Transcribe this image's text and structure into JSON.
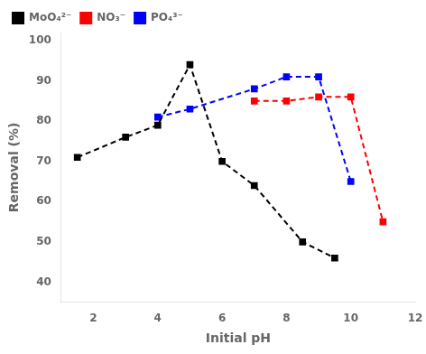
{
  "chart_data": {
    "type": "line",
    "xlabel": "Initial pH",
    "ylabel": "Removal (%)",
    "xlim": [
      1,
      12
    ],
    "ylim": [
      35,
      102
    ],
    "xticks": [
      2,
      4,
      6,
      8,
      10,
      12
    ],
    "yticks": [
      40,
      50,
      60,
      70,
      80,
      90,
      100
    ],
    "grid": false,
    "legend": "upper left",
    "series": [
      {
        "name": "MoO₄²⁻",
        "color": "black",
        "marker": "square",
        "line_style": "dashed",
        "x": [
          1.5,
          3,
          4,
          5,
          6,
          7,
          8.5,
          9.5
        ],
        "values": [
          71,
          76,
          79,
          94,
          70,
          64,
          50,
          46
        ]
      },
      {
        "name": "NO₃⁻",
        "color": "red",
        "marker": "square",
        "line_style": "dashed",
        "x": [
          4,
          5,
          7,
          8,
          9,
          10,
          11
        ],
        "values": [
          null,
          null,
          85,
          85,
          86,
          86,
          55
        ]
      },
      {
        "name": "PO₄³⁻",
        "color": "blue",
        "marker": "square",
        "line_style": "dashed",
        "x": [
          4,
          5,
          7,
          8,
          9,
          10
        ],
        "values": [
          81,
          83,
          88,
          91,
          91,
          65
        ]
      }
    ]
  }
}
